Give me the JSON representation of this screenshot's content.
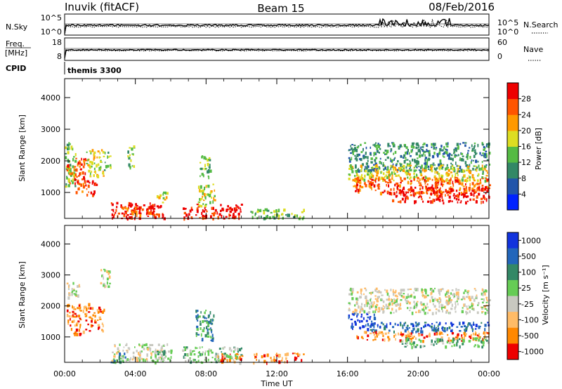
{
  "header": {
    "station": "Inuvik (fitACF)",
    "beam": "Beam 15",
    "date": "08/Feb/2016"
  },
  "strip1": {
    "left_label": "N.Sky",
    "left_ticks": [
      "10^5",
      "10^0"
    ],
    "right_ticks": [
      "10^5",
      "10^0"
    ],
    "right_label": "N.Search"
  },
  "strip2": {
    "left_label_line1": "Freq.",
    "left_label_line2": "[MHz]",
    "left_ticks": [
      "18",
      "8"
    ],
    "right_ticks": [
      "60",
      "0"
    ],
    "right_label": "Nave"
  },
  "cpid": {
    "label": "CPID",
    "program": "themis 3300"
  },
  "colors": {
    "white": "#ffffff",
    "light_gray": "#c0c0c0",
    "dark_gray": "#606060"
  },
  "chart_data": [
    {
      "type": "heatmap",
      "name": "power",
      "xlabel": "Time UT",
      "ylabel": "Slant Range [km]",
      "xlim": [
        0,
        24
      ],
      "ylim": [
        180,
        4600
      ],
      "xticks": [
        "00:00",
        "04:00",
        "08:00",
        "12:00",
        "16:00",
        "20:00",
        "00:00"
      ],
      "yticks": [
        1000,
        2000,
        3000,
        4000
      ],
      "colorbar": {
        "label": "Power [dB]",
        "ticks": [
          "4",
          "8",
          "12",
          "16",
          "20",
          "24",
          "28"
        ],
        "colors": [
          "#0022ff",
          "#2255aa",
          "#338866",
          "#55bb44",
          "#dddd22",
          "#ff9900",
          "#ff5500",
          "#ee0000"
        ]
      },
      "regions": [
        {
          "t0": 0.0,
          "t1": 0.6,
          "r0": 1200,
          "r1": 2600,
          "level": 3
        },
        {
          "t0": 0.1,
          "t1": 0.6,
          "r0": 1300,
          "r1": 1900,
          "level": 6
        },
        {
          "t0": 0.6,
          "t1": 1.2,
          "r0": 1000,
          "r1": 2100,
          "level": 6
        },
        {
          "t0": 1.2,
          "t1": 1.8,
          "r0": 900,
          "r1": 1400,
          "level": 7
        },
        {
          "t0": 1.2,
          "t1": 2.2,
          "r0": 1500,
          "r1": 2400,
          "level": 4
        },
        {
          "t0": 2.2,
          "t1": 2.6,
          "r0": 1700,
          "r1": 2300,
          "level": 3
        },
        {
          "t0": 2.6,
          "t1": 5.6,
          "r0": 200,
          "r1": 700,
          "level": 7
        },
        {
          "t0": 3.2,
          "t1": 5.0,
          "r0": 300,
          "r1": 600,
          "level": 6
        },
        {
          "t0": 5.2,
          "t1": 5.8,
          "r0": 700,
          "r1": 1100,
          "level": 4
        },
        {
          "t0": 3.5,
          "t1": 3.9,
          "r0": 1800,
          "r1": 2500,
          "level": 3
        },
        {
          "t0": 6.6,
          "t1": 10.0,
          "r0": 200,
          "r1": 650,
          "level": 7
        },
        {
          "t0": 7.5,
          "t1": 8.5,
          "r0": 600,
          "r1": 1300,
          "level": 4
        },
        {
          "t0": 7.6,
          "t1": 8.2,
          "r0": 1500,
          "r1": 2200,
          "level": 3
        },
        {
          "t0": 10.5,
          "t1": 13.5,
          "r0": 200,
          "r1": 500,
          "level": 3
        },
        {
          "t0": 16.0,
          "t1": 24.0,
          "r0": 1700,
          "r1": 2600,
          "level": 2
        },
        {
          "t0": 16.0,
          "t1": 24.0,
          "r0": 1400,
          "r1": 1900,
          "level": 4
        },
        {
          "t0": 16.3,
          "t1": 24.0,
          "r0": 1000,
          "r1": 1500,
          "level": 6
        },
        {
          "t0": 18.5,
          "t1": 24.0,
          "r0": 700,
          "r1": 1200,
          "level": 7
        }
      ]
    },
    {
      "type": "heatmap",
      "name": "velocity",
      "xlabel": "Time UT",
      "ylabel": "Slant Range [km]",
      "xlim": [
        0,
        24
      ],
      "ylim": [
        180,
        4600
      ],
      "xticks": [
        "00:00",
        "04:00",
        "08:00",
        "12:00",
        "16:00",
        "20:00",
        "00:00"
      ],
      "yticks": [
        1000,
        2000,
        3000,
        4000
      ],
      "colorbar": {
        "label": "Velocity [m s⁻¹]",
        "ticks": [
          "1000",
          "500",
          "100",
          "25",
          "-25",
          "-100",
          "-500",
          "-1000"
        ],
        "colors": [
          "#1133dd",
          "#2266bb",
          "#338866",
          "#66cc55",
          "#c8c8c0",
          "#ffbb66",
          "#ff8800",
          "#ee0000"
        ]
      },
      "regions": [
        {
          "t0": 0.0,
          "t1": 0.8,
          "r0": 2300,
          "r1": 2800,
          "level": 4
        },
        {
          "t0": 0.1,
          "t1": 1.4,
          "r0": 1100,
          "r1": 2100,
          "level": 6
        },
        {
          "t0": 1.4,
          "t1": 2.2,
          "r0": 1200,
          "r1": 2000,
          "level": 6
        },
        {
          "t0": 2.0,
          "t1": 2.6,
          "r0": 2600,
          "r1": 3200,
          "level": 4
        },
        {
          "t0": 2.6,
          "t1": 5.8,
          "r0": 250,
          "r1": 800,
          "level": 4
        },
        {
          "t0": 2.6,
          "t1": 3.4,
          "r0": 200,
          "r1": 500,
          "level": 2
        },
        {
          "t0": 5.0,
          "t1": 6.0,
          "r0": 200,
          "r1": 600,
          "level": 3
        },
        {
          "t0": 6.6,
          "t1": 10.0,
          "r0": 200,
          "r1": 700,
          "level": 3
        },
        {
          "t0": 7.4,
          "t1": 8.4,
          "r0": 900,
          "r1": 1900,
          "level": 2
        },
        {
          "t0": 8.5,
          "t1": 10.0,
          "r0": 200,
          "r1": 500,
          "level": 6
        },
        {
          "t0": 10.5,
          "t1": 13.5,
          "r0": 200,
          "r1": 500,
          "level": 6
        },
        {
          "t0": 16.0,
          "t1": 17.5,
          "r0": 1300,
          "r1": 1800,
          "level": 0
        },
        {
          "t0": 17.0,
          "t1": 24.0,
          "r0": 1200,
          "r1": 1500,
          "level": 1
        },
        {
          "t0": 16.5,
          "t1": 24.0,
          "r0": 900,
          "r1": 1200,
          "level": 6
        },
        {
          "t0": 19.0,
          "t1": 24.0,
          "r0": 700,
          "r1": 1000,
          "level": 3
        },
        {
          "t0": 16.0,
          "t1": 24.0,
          "r0": 1800,
          "r1": 2600,
          "level": 4
        }
      ]
    }
  ]
}
